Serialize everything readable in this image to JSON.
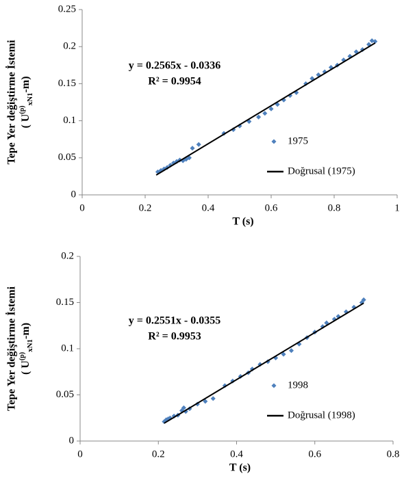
{
  "chart_data": [
    {
      "type": "scatter",
      "xlabel": "T (s)",
      "ylabel": [
        "Tepe Yer değiştirme İstemi",
        "( U",
        "(p)",
        "xN1",
        "-m)"
      ],
      "annotations": [
        "y = 0.2565x - 0.0336",
        "R² = 0.9954"
      ],
      "xlim": [
        0,
        1
      ],
      "xticks": [
        0,
        0.2,
        0.4,
        0.6,
        0.8,
        1
      ],
      "ylim": [
        0,
        0.25
      ],
      "yticks": [
        0,
        0.05,
        0.1,
        0.15,
        0.2,
        0.25
      ],
      "series": [
        {
          "name": "1975",
          "color": "#4f81bd",
          "mode": "markers",
          "x": [
            0.24,
            0.25,
            0.26,
            0.27,
            0.28,
            0.29,
            0.3,
            0.31,
            0.32,
            0.33,
            0.34,
            0.35,
            0.37,
            0.45,
            0.48,
            0.5,
            0.53,
            0.56,
            0.58,
            0.6,
            0.62,
            0.64,
            0.66,
            0.68,
            0.71,
            0.73,
            0.75,
            0.77,
            0.79,
            0.81,
            0.83,
            0.85,
            0.87,
            0.89,
            0.91,
            0.92,
            0.93
          ],
          "values": [
            0.031,
            0.033,
            0.035,
            0.037,
            0.04,
            0.043,
            0.045,
            0.047,
            0.046,
            0.048,
            0.05,
            0.063,
            0.068,
            0.083,
            0.088,
            0.093,
            0.099,
            0.105,
            0.11,
            0.116,
            0.122,
            0.128,
            0.134,
            0.138,
            0.15,
            0.157,
            0.162,
            0.166,
            0.172,
            0.175,
            0.182,
            0.187,
            0.193,
            0.196,
            0.203,
            0.208,
            0.207
          ]
        },
        {
          "name": "Doğrusal (1975)",
          "color": "#000000",
          "mode": "line",
          "x": [
            0.235,
            0.93
          ],
          "values": [
            0.0267,
            0.2049
          ]
        }
      ]
    },
    {
      "type": "scatter",
      "xlabel": "T (s)",
      "ylabel": [
        "Tepe Yer değiştirme İstemi",
        "( U",
        "(p)",
        "xN1",
        "-m)"
      ],
      "annotations": [
        "y = 0.2551x - 0.0355",
        "R² = 0.9953"
      ],
      "xlim": [
        0,
        0.8
      ],
      "xticks": [
        0,
        0.2,
        0.4,
        0.6,
        0.8
      ],
      "ylim": [
        0,
        0.2
      ],
      "yticks": [
        0,
        0.05,
        0.1,
        0.15,
        0.2
      ],
      "series": [
        {
          "name": "1998",
          "color": "#4f81bd",
          "mode": "markers",
          "x": [
            0.215,
            0.22,
            0.225,
            0.23,
            0.24,
            0.25,
            0.26,
            0.265,
            0.27,
            0.28,
            0.3,
            0.32,
            0.34,
            0.37,
            0.39,
            0.41,
            0.43,
            0.44,
            0.46,
            0.48,
            0.5,
            0.52,
            0.54,
            0.56,
            0.58,
            0.6,
            0.62,
            0.63,
            0.65,
            0.66,
            0.68,
            0.7,
            0.72,
            0.725
          ],
          "values": [
            0.021,
            0.023,
            0.024,
            0.025,
            0.027,
            0.028,
            0.033,
            0.036,
            0.032,
            0.035,
            0.04,
            0.043,
            0.046,
            0.06,
            0.065,
            0.07,
            0.074,
            0.078,
            0.083,
            0.086,
            0.09,
            0.094,
            0.098,
            0.105,
            0.112,
            0.118,
            0.124,
            0.128,
            0.132,
            0.135,
            0.14,
            0.145,
            0.15,
            0.153
          ]
        },
        {
          "name": "Doğrusal (1998)",
          "color": "#000000",
          "mode": "line",
          "x": [
            0.215,
            0.725
          ],
          "values": [
            0.0193,
            0.1494
          ]
        }
      ]
    }
  ]
}
